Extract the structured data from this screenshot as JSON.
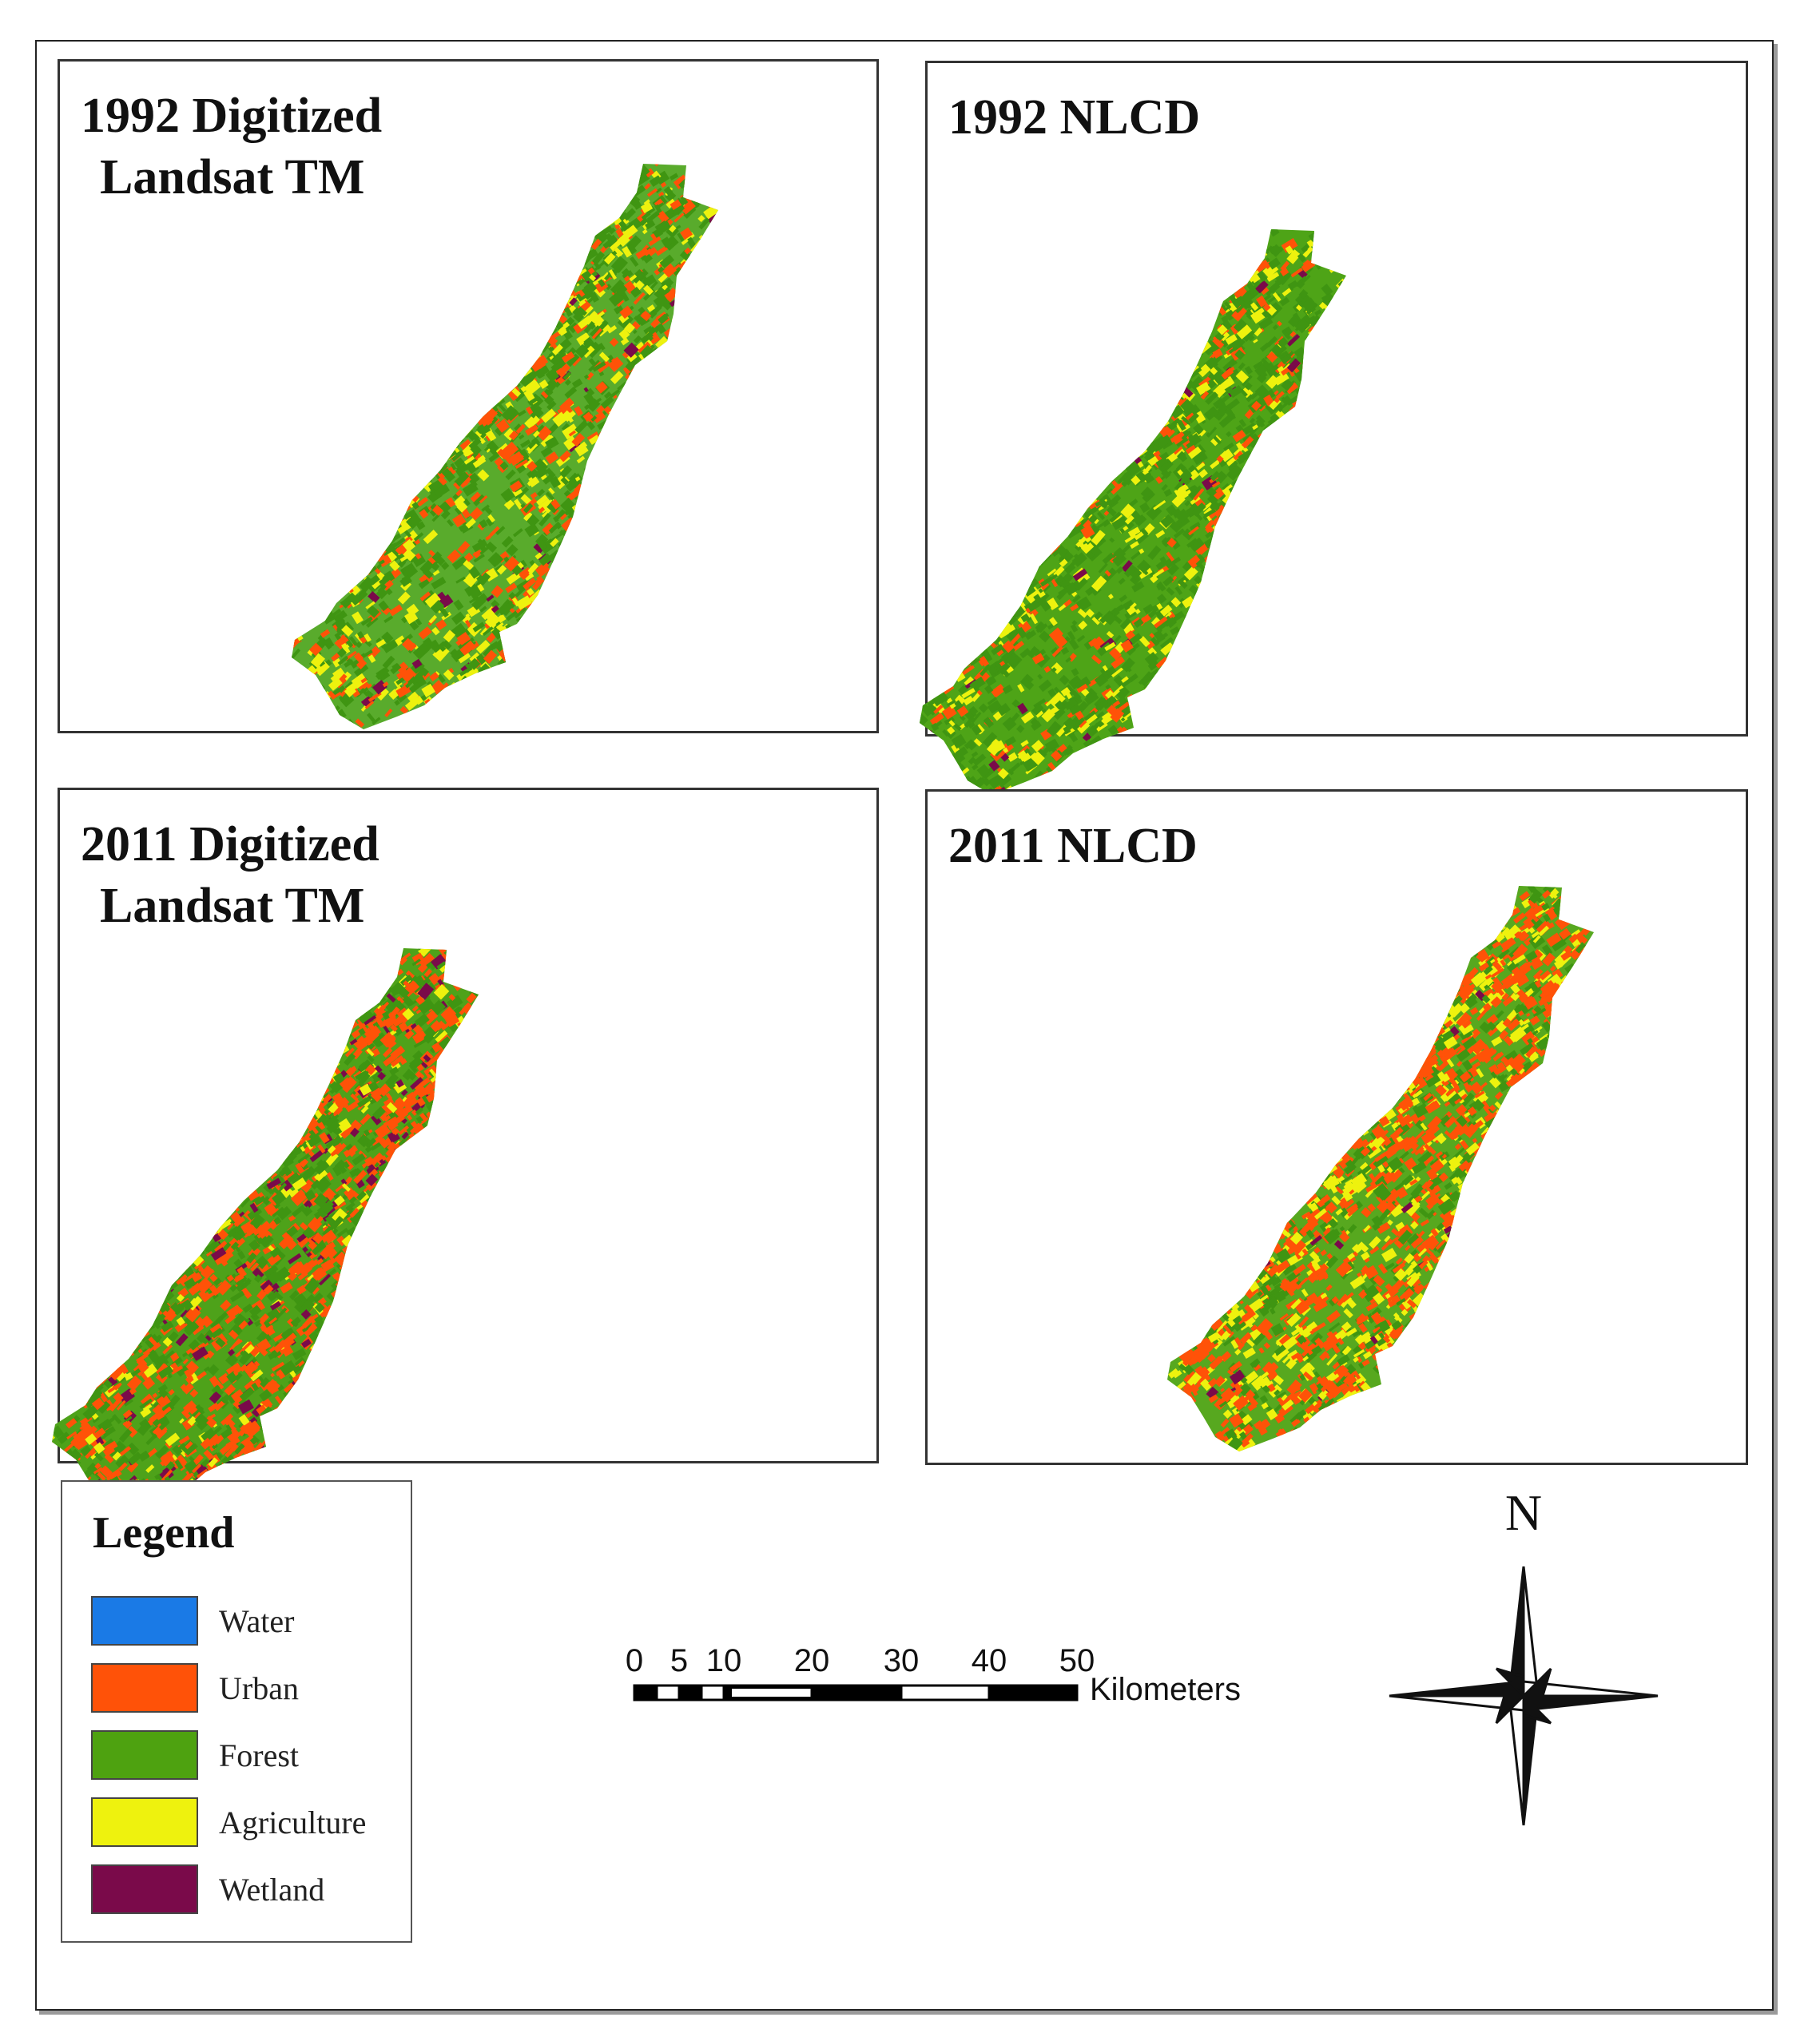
{
  "panels": [
    {
      "id": "p1992d",
      "title_line1": "1992 Digitized",
      "title_line2": "Landsat TM",
      "urban": 0.16,
      "agri": 0.14,
      "wetland": 0.012,
      "forest_tint": "#59ab2c"
    },
    {
      "id": "p1992n",
      "title_line1": "1992 NLCD",
      "title_line2": "",
      "urban": 0.1,
      "agri": 0.12,
      "wetland": 0.01,
      "forest_tint": "#4ea417"
    },
    {
      "id": "p2011d",
      "title_line1": "2011 Digitized",
      "title_line2": "Landsat TM",
      "urban": 0.36,
      "agri": 0.06,
      "wetland": 0.05,
      "forest_tint": "#4ea21a"
    },
    {
      "id": "p2011n",
      "title_line1": "2011 NLCD",
      "title_line2": "",
      "urban": 0.4,
      "agri": 0.22,
      "wetland": 0.01,
      "forest_tint": "#57a81f"
    }
  ],
  "legend": {
    "title": "Legend",
    "items": [
      {
        "label": "Water",
        "color": "#1a7ae6"
      },
      {
        "label": "Urban",
        "color": "#ff5208"
      },
      {
        "label": "Forest",
        "color": "#4ea210"
      },
      {
        "label": "Agriculture",
        "color": "#eef20e"
      },
      {
        "label": "Wetland",
        "color": "#7a0a4a"
      }
    ]
  },
  "scalebar": {
    "ticks": [
      "0",
      "5",
      "10",
      "20",
      "30",
      "40",
      "50"
    ],
    "unit": "Kilometers"
  },
  "north_arrow": {
    "label": "N"
  }
}
